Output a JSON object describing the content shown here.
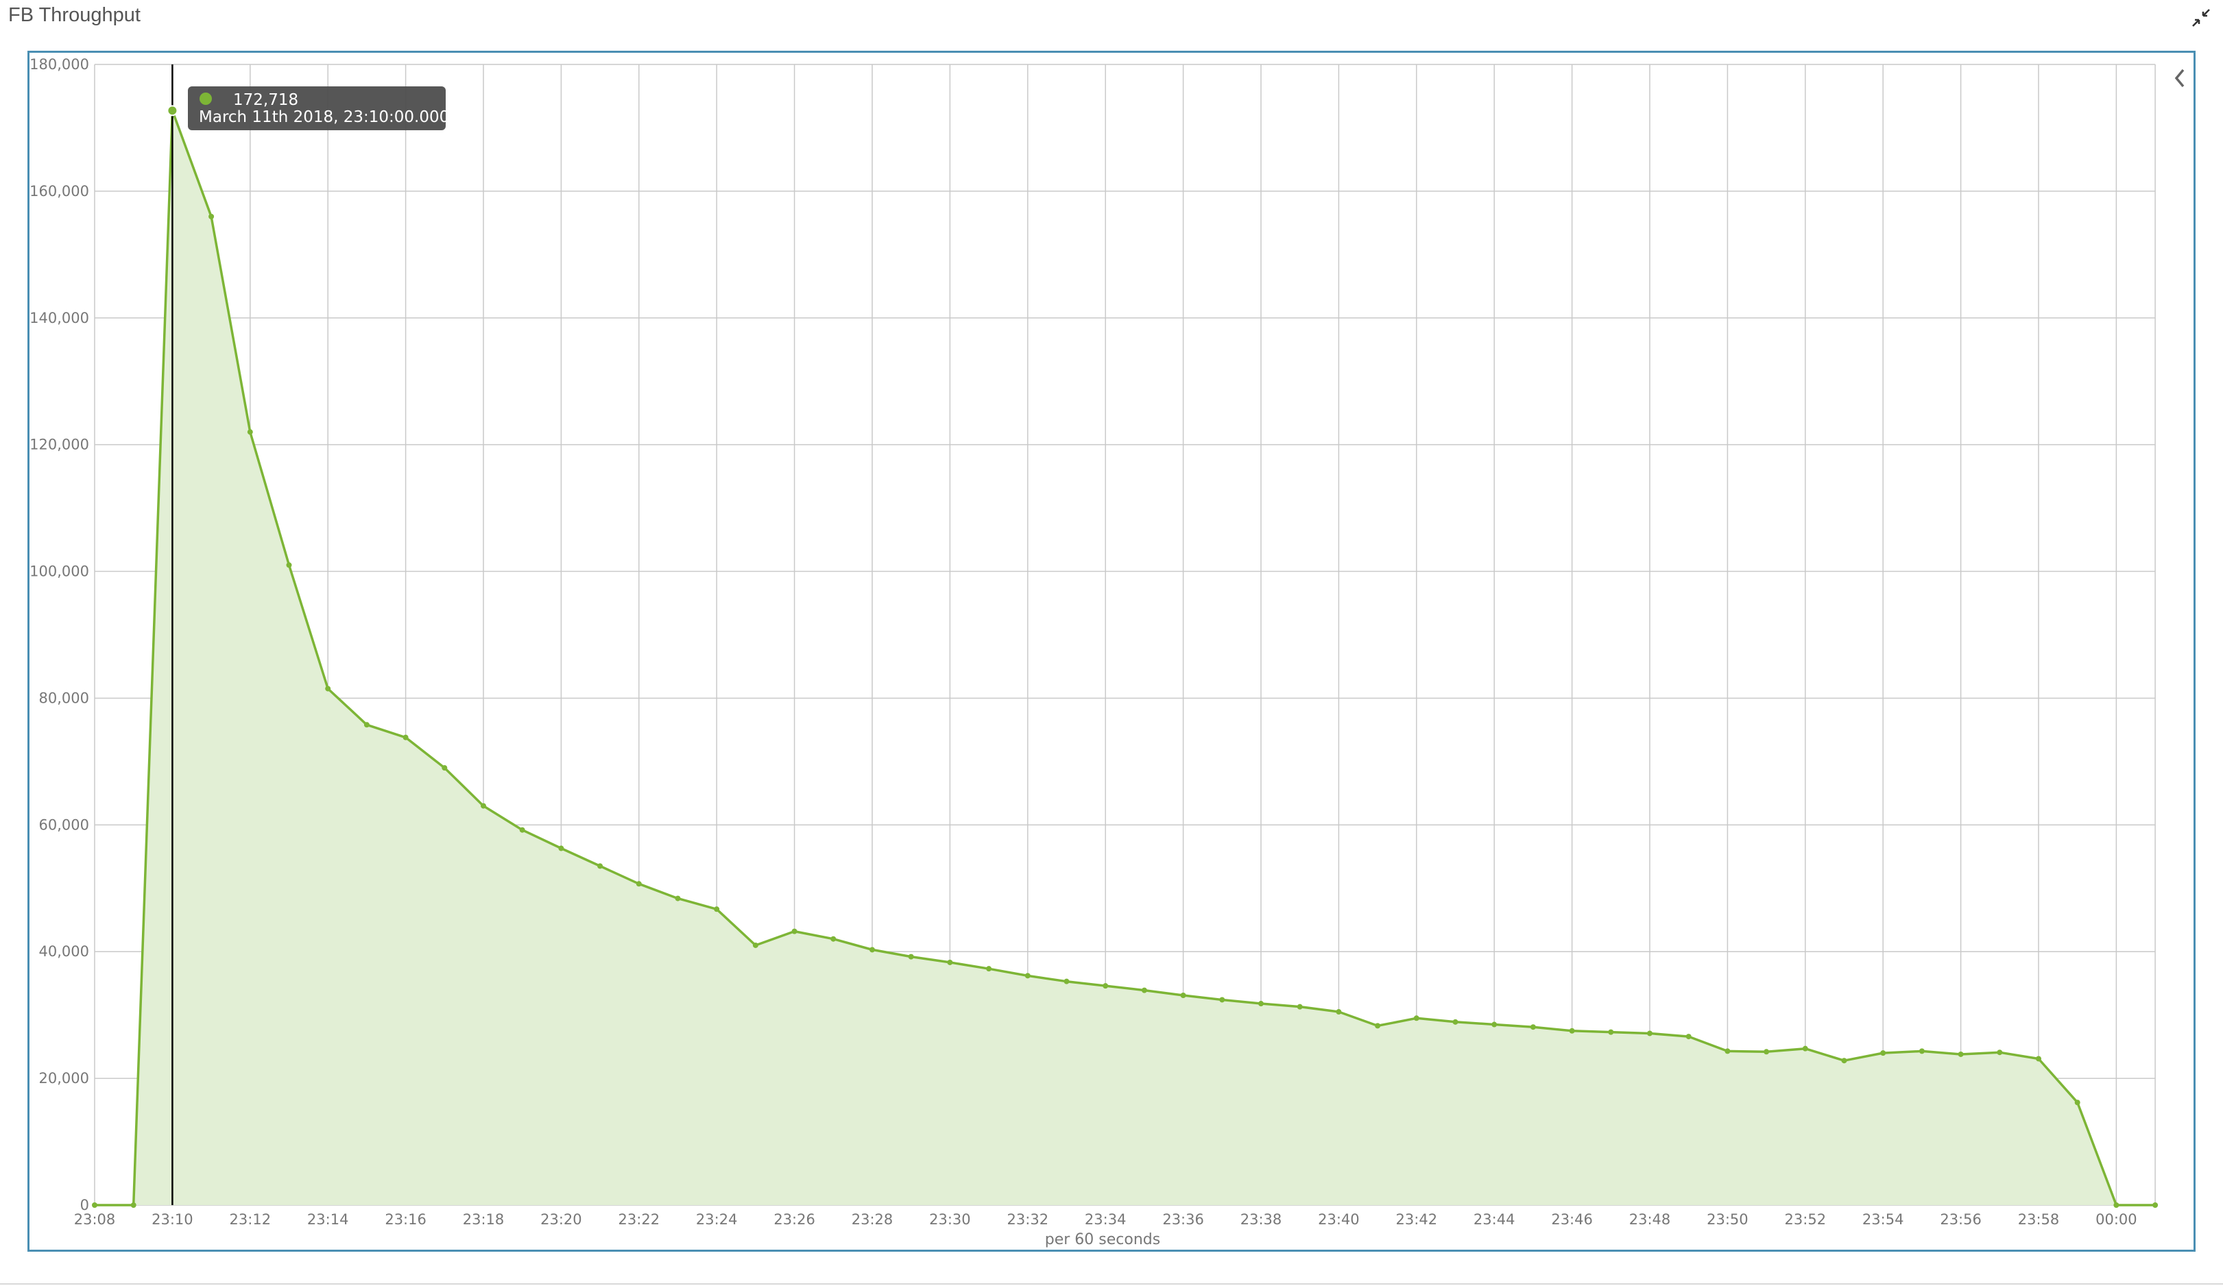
{
  "panel": {
    "title": "FB Throughput"
  },
  "icons": {
    "collapse": "collapse-arrows-icon",
    "legend_toggle": "chevron-left-icon"
  },
  "colors": {
    "series": "#7db536",
    "fill": "#e2efd5",
    "grid": "#c9c9c9",
    "frame": "#4a8fb3",
    "tooltip_bg": "#4d4d4d"
  },
  "chart_data": {
    "type": "area",
    "title": "FB Throughput",
    "xlabel": "per 60 seconds",
    "ylabel": "",
    "ylim": [
      0,
      180000
    ],
    "yticks": [
      0,
      20000,
      40000,
      60000,
      80000,
      100000,
      120000,
      140000,
      160000,
      180000
    ],
    "ytick_labels": [
      "0",
      "20,000",
      "40,000",
      "60,000",
      "80,000",
      "100,000",
      "120,000",
      "140,000",
      "160,000",
      "180,000"
    ],
    "xtick_labels": [
      "23:08",
      "23:10",
      "23:12",
      "23:14",
      "23:16",
      "23:18",
      "23:20",
      "23:22",
      "23:24",
      "23:26",
      "23:28",
      "23:30",
      "23:32",
      "23:34",
      "23:36",
      "23:38",
      "23:40",
      "23:42",
      "23:44",
      "23:46",
      "23:48",
      "23:50",
      "23:52",
      "23:54",
      "23:56",
      "23:58",
      "00:00"
    ],
    "x_minutes": [
      0,
      1,
      2,
      3,
      4,
      5,
      6,
      7,
      8,
      9,
      10,
      11,
      12,
      13,
      14,
      15,
      16,
      17,
      18,
      19,
      20,
      21,
      22,
      23,
      24,
      25,
      26,
      27,
      28,
      29,
      30,
      31,
      32,
      33,
      34,
      35,
      36,
      37,
      38,
      39,
      40,
      41,
      42,
      43,
      44,
      45,
      46,
      47,
      48,
      49,
      50,
      51,
      52,
      53
    ],
    "x_start": "23:08",
    "values": [
      0,
      0,
      172718,
      156000,
      122000,
      101000,
      81500,
      75800,
      73800,
      69000,
      63000,
      59200,
      56300,
      53500,
      50700,
      48400,
      46700,
      41000,
      43200,
      42000,
      40300,
      39200,
      38300,
      37300,
      36200,
      35300,
      34600,
      33900,
      33100,
      32400,
      31800,
      31300,
      30500,
      28300,
      29500,
      28900,
      28500,
      28100,
      27500,
      27300,
      27100,
      26600,
      24300,
      24200,
      24700,
      22800,
      24000,
      24300,
      23800,
      24100,
      23100,
      16200,
      0,
      0
    ],
    "grid": true,
    "tooltip": {
      "index": 2,
      "value": "172,718",
      "time": "March 11th 2018, 23:10:00.000"
    }
  }
}
